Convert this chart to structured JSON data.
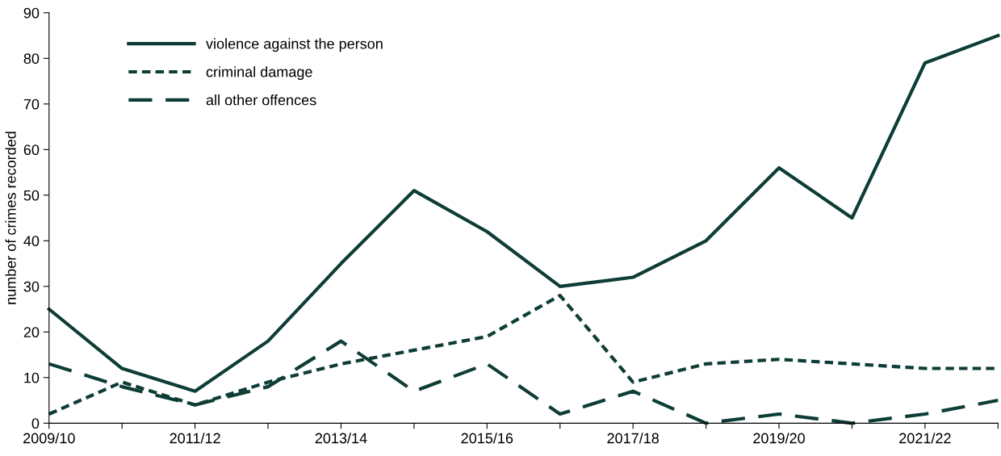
{
  "chart_data": {
    "type": "line",
    "ylabel": "number of crimes recorded",
    "categories": [
      "2009/10",
      null,
      "2011/12",
      null,
      "2013/14",
      null,
      "2015/16",
      null,
      "2017/18",
      null,
      "2019/20",
      null,
      "2021/22",
      null
    ],
    "series": [
      {
        "name": "violence against the person",
        "color": "#0d3d36",
        "line_style": "solid",
        "values": [
          25,
          12,
          7,
          18,
          35,
          51,
          42,
          30,
          32,
          40,
          56,
          45,
          79,
          85
        ]
      },
      {
        "name": "criminal damage",
        "color": "#0d3d36",
        "line_style": "dotted",
        "values": [
          2,
          9,
          4,
          9,
          13,
          16,
          19,
          28,
          9,
          13,
          14,
          13,
          12,
          12
        ]
      },
      {
        "name": "all other offences",
        "color": "#0d3d36",
        "line_style": "dashed",
        "values": [
          13,
          8,
          4,
          8,
          18,
          7,
          13,
          2,
          7,
          0,
          2,
          0,
          2,
          5
        ]
      }
    ],
    "ylim": [
      0,
      90
    ],
    "yticks": [
      0,
      10,
      20,
      30,
      40,
      50,
      60,
      70,
      80,
      90
    ],
    "grid": false,
    "legend": "top left",
    "marker": "none"
  }
}
